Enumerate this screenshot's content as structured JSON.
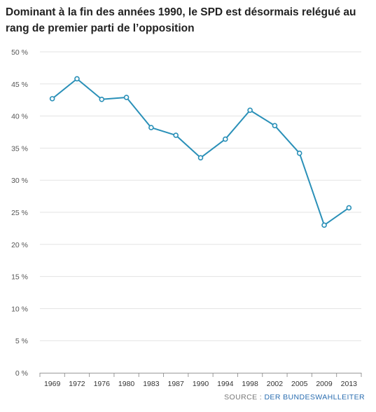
{
  "title": "Dominant à la fin des années 1990, le SPD est désormais relégué au rang de premier parti de l’opposition",
  "source": {
    "prefix": "SOURCE : ",
    "name": "DER BUNDESWAHLLEITER"
  },
  "colors": {
    "line": "#2a90b8",
    "grid": "#e3e3e3",
    "axis": "#999999"
  },
  "chart_data": {
    "type": "line",
    "categories": [
      "1969",
      "1972",
      "1976",
      "1980",
      "1983",
      "1987",
      "1990",
      "1994",
      "1998",
      "2002",
      "2005",
      "2009",
      "2013"
    ],
    "series": [
      {
        "values": [
          42.7,
          45.8,
          42.6,
          42.9,
          38.2,
          37.0,
          33.5,
          36.4,
          40.9,
          38.5,
          34.2,
          23.0,
          25.7
        ]
      }
    ],
    "yticks": [
      "0 %",
      "5 %",
      "10 %",
      "15 %",
      "20 %",
      "25 %",
      "30 %",
      "35 %",
      "40 %",
      "45 %",
      "50 %"
    ],
    "ylim": [
      0,
      50
    ],
    "grid": true,
    "title": "Dominant à la fin des années 1990, le SPD est désormais relégué au rang de premier parti de l’opposition",
    "xlabel": "",
    "ylabel": ""
  }
}
